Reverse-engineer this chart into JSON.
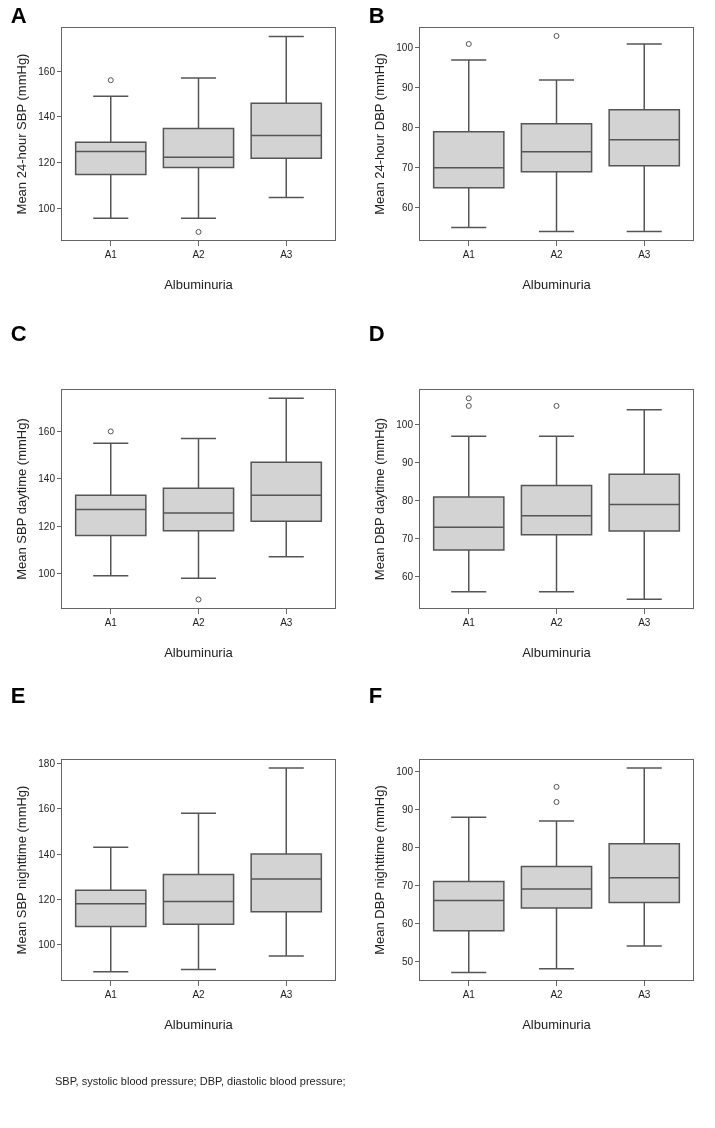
{
  "chart_data": [
    {
      "type": "box",
      "title": "A",
      "xlabel": "Albuminuria",
      "ylabel": "Mean 24-hour SBP (mmHg)",
      "categories": [
        "A1",
        "A2",
        "A3"
      ],
      "ylim": [
        86.5,
        178.7
      ],
      "yticks": [
        100,
        120,
        140,
        160
      ],
      "grid": false,
      "series": [
        {
          "color": "#d3d3d3",
          "boxes": [
            {
              "low": 96,
              "q1": 115,
              "median": 125,
              "q3": 129,
              "high": 149,
              "outliers": [
                156
              ]
            },
            {
              "low": 96,
              "q1": 118,
              "median": 122.5,
              "q3": 135,
              "high": 157,
              "outliers": [
                90
              ]
            },
            {
              "low": 105,
              "q1": 122,
              "median": 132,
              "q3": 146,
              "high": 175
            }
          ]
        }
      ]
    },
    {
      "type": "box",
      "title": "B",
      "xlabel": "Albuminuria",
      "ylabel": "Mean 24-hour DBP (mmHg)",
      "categories": [
        "A1",
        "A2",
        "A3"
      ],
      "ylim": [
        51.9,
        105
      ],
      "yticks": [
        60,
        70,
        80,
        90,
        100
      ],
      "grid": false,
      "series": [
        {
          "color": "#d3d3d3",
          "boxes": [
            {
              "low": 55,
              "q1": 65,
              "median": 70,
              "q3": 79,
              "high": 97,
              "outliers": [
                101
              ]
            },
            {
              "low": 54,
              "q1": 69,
              "median": 74,
              "q3": 81,
              "high": 92,
              "outliers": [
                103
              ]
            },
            {
              "low": 54,
              "q1": 70.5,
              "median": 77,
              "q3": 84.5,
              "high": 101
            }
          ]
        }
      ]
    },
    {
      "type": "box",
      "title": "C",
      "xlabel": "Albuminuria",
      "ylabel": "Mean SBP daytime (mmHg)",
      "categories": [
        "A1",
        "A2",
        "A3"
      ],
      "ylim": [
        85.4,
        177.5
      ],
      "yticks": [
        100,
        120,
        140,
        160
      ],
      "grid": false,
      "series": [
        {
          "color": "#d3d3d3",
          "boxes": [
            {
              "low": 99,
              "q1": 116,
              "median": 127,
              "q3": 133,
              "high": 155,
              "outliers": [
                160
              ]
            },
            {
              "low": 98,
              "q1": 118,
              "median": 125.5,
              "q3": 136,
              "high": 157,
              "outliers": [
                89
              ]
            },
            {
              "low": 107,
              "q1": 122,
              "median": 133,
              "q3": 147,
              "high": 174
            }
          ]
        }
      ]
    },
    {
      "type": "box",
      "title": "D",
      "xlabel": "Albuminuria",
      "ylabel": "Mean DBP daytime (mmHg)",
      "categories": [
        "A1",
        "A2",
        "A3"
      ],
      "ylim": [
        51.7,
        109.2
      ],
      "yticks": [
        60,
        70,
        80,
        90,
        100
      ],
      "grid": false,
      "series": [
        {
          "color": "#d3d3d3",
          "boxes": [
            {
              "low": 56,
              "q1": 67,
              "median": 73,
              "q3": 81,
              "high": 97,
              "outliers": [
                105,
                107
              ]
            },
            {
              "low": 56,
              "q1": 71,
              "median": 76,
              "q3": 84,
              "high": 97,
              "outliers": [
                105
              ]
            },
            {
              "low": 54,
              "q1": 72,
              "median": 79,
              "q3": 87,
              "high": 104
            }
          ]
        }
      ]
    },
    {
      "type": "box",
      "title": "E",
      "xlabel": "Albuminuria",
      "ylabel": "Mean SBP nighttime (mmHg)",
      "categories": [
        "A1",
        "A2",
        "A3"
      ],
      "ylim": [
        84.4,
        181.5
      ],
      "yticks": [
        100,
        120,
        140,
        160,
        180
      ],
      "grid": false,
      "series": [
        {
          "color": "#d3d3d3",
          "boxes": [
            {
              "low": 88,
              "q1": 108,
              "median": 118,
              "q3": 124,
              "high": 143
            },
            {
              "low": 89,
              "q1": 109,
              "median": 119,
              "q3": 131,
              "high": 158
            },
            {
              "low": 95,
              "q1": 114.5,
              "median": 129,
              "q3": 140,
              "high": 178
            }
          ]
        }
      ]
    },
    {
      "type": "box",
      "title": "F",
      "xlabel": "Albuminuria",
      "ylabel": "Mean DBP nighttime (mmHg)",
      "categories": [
        "A1",
        "A2",
        "A3"
      ],
      "ylim": [
        45,
        103.1
      ],
      "yticks": [
        50,
        60,
        70,
        80,
        90,
        100
      ],
      "grid": false,
      "annotations": [
        "SBP, systolic blood pressure; DBP, diastolic blood pressure;"
      ],
      "series": [
        {
          "color": "#d3d3d3",
          "boxes": [
            {
              "low": 47,
              "q1": 58,
              "median": 66,
              "q3": 71,
              "high": 88
            },
            {
              "low": 48,
              "q1": 64,
              "median": 69,
              "q3": 75,
              "high": 87,
              "outliers": [
                92,
                96
              ]
            },
            {
              "low": 54,
              "q1": 65.5,
              "median": 72,
              "q3": 81,
              "high": 101
            }
          ]
        }
      ]
    }
  ]
}
